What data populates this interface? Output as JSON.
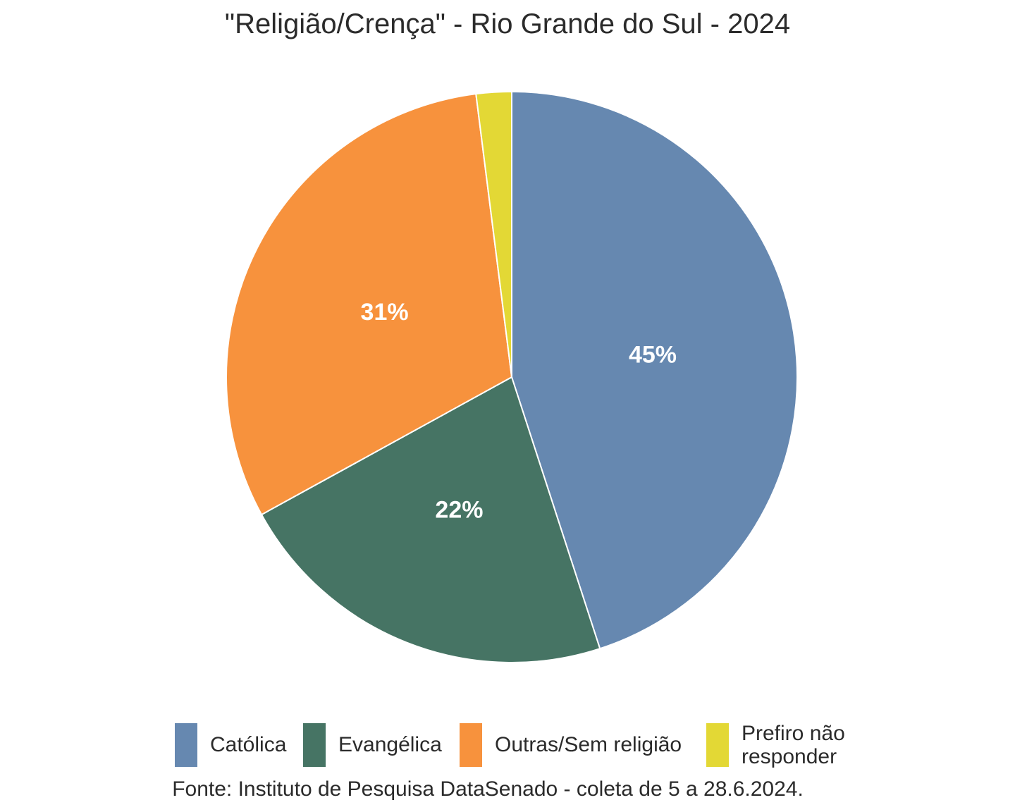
{
  "chart_data": {
    "type": "pie",
    "title": "\"Religião/Crença\" - Rio Grande do Sul - 2024",
    "categories": [
      "Católica",
      "Evangélica",
      "Outras/Sem religião",
      "Prefiro não responder"
    ],
    "values": [
      45,
      22,
      31,
      2
    ],
    "labels": [
      "45%",
      "22%",
      "31%",
      ""
    ],
    "colors": [
      "#6688b0",
      "#467464",
      "#f7923d",
      "#e3d835"
    ],
    "legend_position": "bottom",
    "caption": "Fonte: Instituto de Pesquisa DataSenado - coleta de 5 a 28.6.2024."
  }
}
